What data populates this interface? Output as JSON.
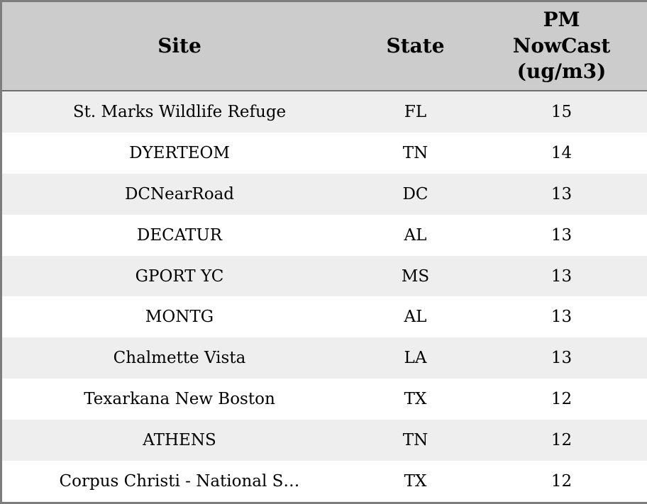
{
  "chart_data": {
    "type": "table",
    "title": "",
    "columns": [
      "Site",
      "State",
      "PM NowCast (ug/m3)"
    ],
    "rows": [
      [
        "St. Marks Wildlife Refuge",
        "FL",
        "15"
      ],
      [
        "DYERTEOM",
        "TN",
        "14"
      ],
      [
        "DCNearRoad",
        "DC",
        "13"
      ],
      [
        "DECATUR",
        "AL",
        "13"
      ],
      [
        "GPORT YC",
        "MS",
        "13"
      ],
      [
        "MONTG",
        "AL",
        "13"
      ],
      [
        "Chalmette Vista",
        "LA",
        "13"
      ],
      [
        "Texarkana New Boston",
        "TX",
        "12"
      ],
      [
        "ATHENS",
        "TN",
        "12"
      ],
      [
        "Corpus Christi - National S…",
        "TX",
        "12"
      ]
    ],
    "layout": {
      "striped": true,
      "header_position": "top",
      "alignment": "center"
    },
    "colors": {
      "header_bg": "#cccccc",
      "row_alt_bg": "#eeeeee",
      "row_bg": "#ffffff",
      "border": "#7d7d7d",
      "text": "#000000"
    }
  }
}
